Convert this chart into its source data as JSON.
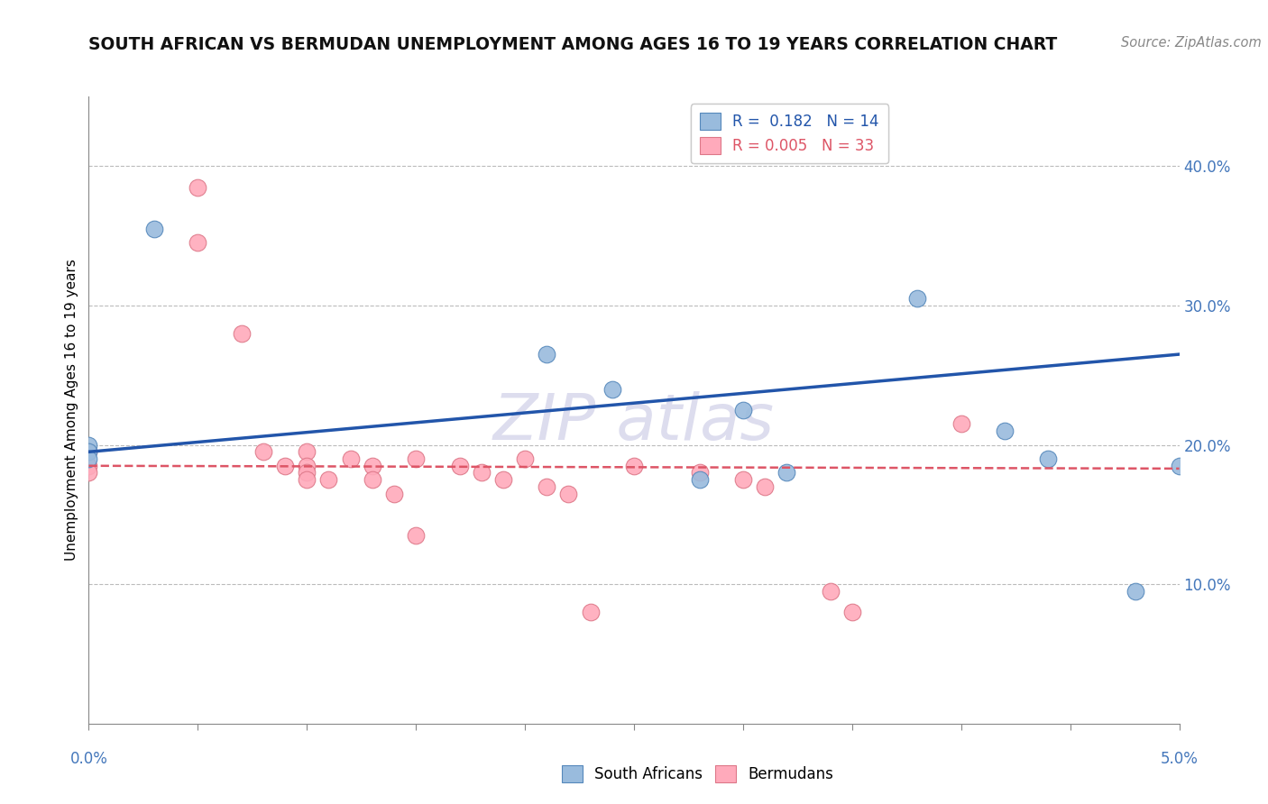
{
  "title": "SOUTH AFRICAN VS BERMUDAN UNEMPLOYMENT AMONG AGES 16 TO 19 YEARS CORRELATION CHART",
  "source": "Source: ZipAtlas.com",
  "ylabel": "Unemployment Among Ages 16 to 19 years",
  "xlim": [
    0.0,
    0.05
  ],
  "ylim": [
    0.0,
    0.45
  ],
  "y_ticks": [
    0.1,
    0.2,
    0.3,
    0.4
  ],
  "y_tick_labels": [
    "10.0%",
    "20.0%",
    "30.0%",
    "40.0%"
  ],
  "x_ticks": [
    0.0,
    0.005,
    0.01,
    0.015,
    0.02,
    0.025,
    0.03,
    0.035,
    0.04,
    0.045,
    0.05
  ],
  "legend_blue_r": "0.182",
  "legend_blue_n": "14",
  "legend_pink_r": "0.005",
  "legend_pink_n": "33",
  "legend_blue_label": "South Africans",
  "legend_pink_label": "Bermudans",
  "blue_scatter_color": "#99BBDD",
  "blue_edge_color": "#5588BB",
  "pink_scatter_color": "#FFAABB",
  "pink_edge_color": "#DD7788",
  "blue_line_color": "#2255AA",
  "pink_line_color": "#DD5566",
  "background_color": "#FFFFFF",
  "grid_color": "#BBBBBB",
  "watermark_color": "#DDDDEE",
  "blue_scatter_x": [
    0.0,
    0.0,
    0.0,
    0.003,
    0.021,
    0.024,
    0.028,
    0.03,
    0.032,
    0.038,
    0.042,
    0.044,
    0.048,
    0.05
  ],
  "blue_scatter_y": [
    0.2,
    0.195,
    0.19,
    0.355,
    0.265,
    0.24,
    0.175,
    0.225,
    0.18,
    0.305,
    0.21,
    0.19,
    0.095,
    0.185
  ],
  "pink_scatter_x": [
    0.0,
    0.0,
    0.0,
    0.005,
    0.005,
    0.007,
    0.008,
    0.009,
    0.01,
    0.01,
    0.01,
    0.01,
    0.011,
    0.012,
    0.013,
    0.013,
    0.014,
    0.015,
    0.015,
    0.017,
    0.018,
    0.019,
    0.02,
    0.021,
    0.022,
    0.023,
    0.025,
    0.028,
    0.03,
    0.031,
    0.034,
    0.035,
    0.04
  ],
  "pink_scatter_y": [
    0.195,
    0.185,
    0.18,
    0.385,
    0.345,
    0.28,
    0.195,
    0.185,
    0.195,
    0.185,
    0.18,
    0.175,
    0.175,
    0.19,
    0.185,
    0.175,
    0.165,
    0.135,
    0.19,
    0.185,
    0.18,
    0.175,
    0.19,
    0.17,
    0.165,
    0.08,
    0.185,
    0.18,
    0.175,
    0.17,
    0.095,
    0.08,
    0.215
  ],
  "blue_trendline_x": [
    0.0,
    0.05
  ],
  "blue_trendline_y": [
    0.195,
    0.265
  ],
  "pink_trendline_x": [
    0.0,
    0.05
  ],
  "pink_trendline_y": [
    0.185,
    0.183
  ]
}
